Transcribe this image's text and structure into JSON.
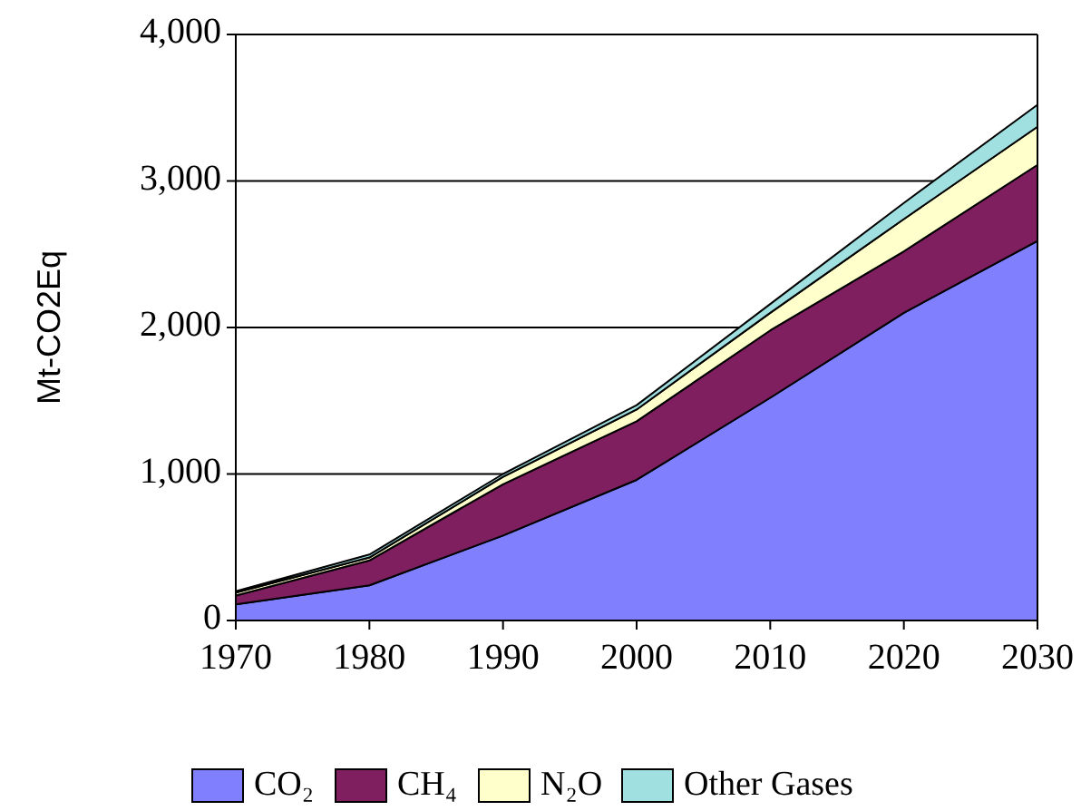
{
  "chart_data": {
    "type": "area",
    "stacked": true,
    "ylabel": "Mt-CO2Eq",
    "x": [
      1970,
      1980,
      1990,
      2000,
      2010,
      2020,
      2030
    ],
    "series": [
      {
        "name": "CO₂",
        "color": "#8080ff",
        "values": [
          110,
          240,
          580,
          960,
          1520,
          2100,
          2590
        ]
      },
      {
        "name": "CH₄",
        "color": "#7f1f5f",
        "values": [
          60,
          170,
          350,
          400,
          460,
          420,
          520
        ]
      },
      {
        "name": "N₂O",
        "color": "#ffffcc",
        "values": [
          20,
          20,
          50,
          80,
          120,
          220,
          260
        ]
      },
      {
        "name": "Other Gases",
        "color": "#a0e0e0",
        "values": [
          10,
          20,
          20,
          30,
          60,
          110,
          150
        ]
      }
    ],
    "xlim": [
      1970,
      2030
    ],
    "xticks": [
      1970,
      1980,
      1990,
      2000,
      2010,
      2020,
      2030
    ],
    "ylim": [
      0,
      4000
    ],
    "yticks": [
      0,
      {
        "value": 1000,
        "label": "1,000"
      },
      {
        "value": 2000,
        "label": "2,000"
      },
      {
        "value": 3000,
        "label": "3,000"
      },
      {
        "value": 4000,
        "label": "4,000"
      }
    ],
    "grid": "y",
    "legend": "bottom"
  }
}
